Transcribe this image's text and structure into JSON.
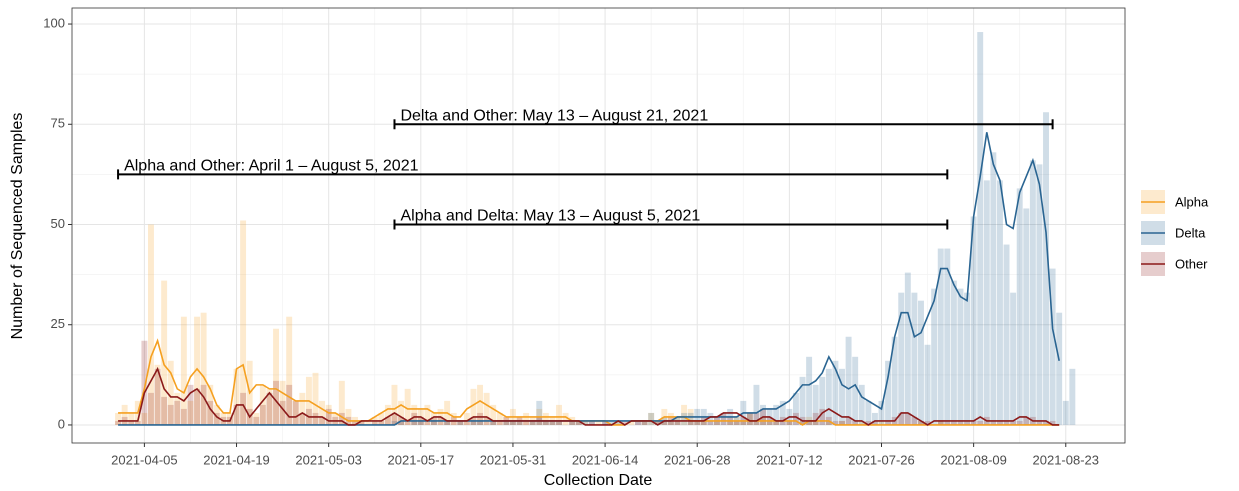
{
  "chart_data": {
    "type": "bar_line",
    "xlabel": "Collection Date",
    "ylabel": "Number of Sequenced Samples",
    "xlim": [
      "2021-03-25",
      "2021-09-01"
    ],
    "xticks": [
      "2021-04-05",
      "2021-04-19",
      "2021-05-03",
      "2021-05-17",
      "2021-05-31",
      "2021-06-14",
      "2021-06-28",
      "2021-07-12",
      "2021-07-26",
      "2021-08-09",
      "2021-08-23"
    ],
    "ylim": [
      -4.5,
      104
    ],
    "yticks": [
      0,
      25,
      50,
      75,
      100
    ],
    "grid": true,
    "legend": "right",
    "x": [
      "2021-04-01",
      "2021-04-02",
      "2021-04-03",
      "2021-04-04",
      "2021-04-05",
      "2021-04-06",
      "2021-04-07",
      "2021-04-08",
      "2021-04-09",
      "2021-04-10",
      "2021-04-11",
      "2021-04-12",
      "2021-04-13",
      "2021-04-14",
      "2021-04-15",
      "2021-04-16",
      "2021-04-17",
      "2021-04-18",
      "2021-04-19",
      "2021-04-20",
      "2021-04-21",
      "2021-04-22",
      "2021-04-23",
      "2021-04-24",
      "2021-04-25",
      "2021-04-26",
      "2021-04-27",
      "2021-04-28",
      "2021-04-29",
      "2021-04-30",
      "2021-05-01",
      "2021-05-02",
      "2021-05-03",
      "2021-05-04",
      "2021-05-05",
      "2021-05-06",
      "2021-05-07",
      "2021-05-08",
      "2021-05-09",
      "2021-05-10",
      "2021-05-11",
      "2021-05-12",
      "2021-05-13",
      "2021-05-14",
      "2021-05-15",
      "2021-05-16",
      "2021-05-17",
      "2021-05-18",
      "2021-05-19",
      "2021-05-20",
      "2021-05-21",
      "2021-05-22",
      "2021-05-23",
      "2021-05-24",
      "2021-05-25",
      "2021-05-26",
      "2021-05-27",
      "2021-05-28",
      "2021-05-29",
      "2021-05-30",
      "2021-05-31",
      "2021-06-01",
      "2021-06-02",
      "2021-06-03",
      "2021-06-04",
      "2021-06-05",
      "2021-06-06",
      "2021-06-07",
      "2021-06-08",
      "2021-06-09",
      "2021-06-10",
      "2021-06-11",
      "2021-06-12",
      "2021-06-13",
      "2021-06-14",
      "2021-06-15",
      "2021-06-16",
      "2021-06-17",
      "2021-06-18",
      "2021-06-19",
      "2021-06-20",
      "2021-06-21",
      "2021-06-22",
      "2021-06-23",
      "2021-06-24",
      "2021-06-25",
      "2021-06-26",
      "2021-06-27",
      "2021-06-28",
      "2021-06-29",
      "2021-06-30",
      "2021-07-01",
      "2021-07-02",
      "2021-07-03",
      "2021-07-04",
      "2021-07-05",
      "2021-07-06",
      "2021-07-07",
      "2021-07-08",
      "2021-07-09",
      "2021-07-10",
      "2021-07-11",
      "2021-07-12",
      "2021-07-13",
      "2021-07-14",
      "2021-07-15",
      "2021-07-16",
      "2021-07-17",
      "2021-07-18",
      "2021-07-19",
      "2021-07-20",
      "2021-07-21",
      "2021-07-22",
      "2021-07-23",
      "2021-07-24",
      "2021-07-25",
      "2021-07-26",
      "2021-07-27",
      "2021-07-28",
      "2021-07-29",
      "2021-07-30",
      "2021-07-31",
      "2021-08-01",
      "2021-08-02",
      "2021-08-03",
      "2021-08-04",
      "2021-08-05",
      "2021-08-06",
      "2021-08-07",
      "2021-08-08",
      "2021-08-09",
      "2021-08-10",
      "2021-08-11",
      "2021-08-12",
      "2021-08-13",
      "2021-08-14",
      "2021-08-15",
      "2021-08-16",
      "2021-08-17",
      "2021-08-18",
      "2021-08-19",
      "2021-08-20",
      "2021-08-21",
      "2021-08-22",
      "2021-08-23",
      "2021-08-24"
    ],
    "series": [
      {
        "name": "Alpha",
        "color": "#f5a020",
        "values": [
          3,
          5,
          3,
          6,
          3,
          50,
          15,
          36,
          16,
          8,
          27,
          6,
          27,
          28,
          10,
          5,
          3,
          3,
          14,
          51,
          16,
          3,
          10,
          9,
          24,
          11,
          27,
          6,
          8,
          12,
          13,
          6,
          5,
          3,
          11,
          4,
          2,
          1,
          1,
          2,
          3,
          5,
          10,
          6,
          9,
          5,
          4,
          5,
          3,
          4,
          6,
          3,
          1,
          3,
          9,
          10,
          8,
          5,
          3,
          2,
          4,
          2,
          3,
          2,
          4,
          3,
          2,
          5,
          3,
          2,
          1,
          1,
          0,
          1,
          0,
          0,
          1,
          0,
          1,
          0,
          1,
          3,
          1,
          4,
          3,
          2,
          5,
          4,
          1,
          1,
          0,
          1,
          0,
          1,
          2,
          1,
          3,
          1,
          2,
          1,
          1,
          0,
          1,
          0,
          1,
          2,
          1,
          0,
          1,
          0,
          1,
          0,
          0,
          1,
          0,
          0,
          1,
          0,
          0,
          0,
          0,
          0,
          1,
          0,
          0,
          1,
          0,
          0,
          0,
          0,
          0,
          0,
          0,
          0,
          0,
          0,
          0,
          0,
          0,
          0,
          0,
          0,
          0,
          0,
          0,
          0
        ],
        "smoothed": [
          3,
          3,
          3,
          3,
          9,
          17,
          21,
          15,
          13,
          9,
          8,
          12,
          14,
          12,
          9,
          5,
          3,
          3,
          14,
          15,
          8,
          10,
          10,
          9,
          9,
          8,
          7,
          6,
          6,
          6,
          5,
          4,
          3,
          3,
          2,
          1,
          1,
          1,
          1,
          2,
          3,
          4,
          4,
          5,
          4,
          4,
          4,
          4,
          3,
          3,
          3,
          2,
          2,
          4,
          5,
          6,
          5,
          4,
          3,
          2,
          2,
          2,
          2,
          2,
          2,
          2,
          2,
          2,
          2,
          1,
          1,
          1,
          1,
          1,
          1,
          0,
          0,
          0,
          1,
          1,
          1,
          1,
          1,
          2,
          2,
          2,
          2,
          1,
          1,
          1,
          1,
          1,
          1,
          1,
          1,
          1,
          1,
          1,
          1,
          1,
          1,
          1,
          1,
          1,
          0,
          1,
          1,
          1,
          1,
          0,
          0,
          0,
          0,
          0,
          0,
          0,
          0,
          0,
          0,
          0,
          0,
          0,
          0,
          0,
          0,
          0,
          0,
          0,
          0,
          0,
          0,
          0,
          0,
          0,
          0,
          0,
          0,
          0,
          0,
          0,
          0,
          0,
          0,
          0,
          null,
          null
        ]
      },
      {
        "name": "Delta",
        "color": "#2a6592",
        "values": [
          0,
          0,
          0,
          0,
          0,
          0,
          0,
          0,
          0,
          0,
          0,
          0,
          0,
          0,
          0,
          0,
          0,
          0,
          0,
          0,
          0,
          0,
          0,
          0,
          0,
          0,
          0,
          0,
          0,
          0,
          0,
          0,
          0,
          0,
          0,
          0,
          0,
          0,
          0,
          0,
          0,
          0,
          1,
          1,
          0,
          1,
          1,
          0,
          1,
          0,
          1,
          0,
          1,
          0,
          1,
          1,
          0,
          1,
          0,
          1,
          1,
          1,
          0,
          1,
          6,
          1,
          1,
          1,
          0,
          1,
          1,
          1,
          1,
          0,
          1,
          1,
          1,
          0,
          0,
          1,
          1,
          3,
          1,
          2,
          1,
          2,
          3,
          3,
          4,
          4,
          3,
          2,
          3,
          4,
          2,
          6,
          3,
          10,
          5,
          4,
          5,
          6,
          4,
          8,
          12,
          17,
          10,
          12,
          14,
          16,
          14,
          22,
          17,
          10,
          6,
          3,
          6,
          16,
          22,
          33,
          38,
          33,
          31,
          20,
          34,
          44,
          44,
          36,
          34,
          33,
          52,
          98,
          61,
          68,
          61,
          45,
          33,
          59,
          54,
          66,
          65,
          78,
          39,
          28,
          6,
          14
        ],
        "smoothed": [
          0,
          0,
          0,
          0,
          0,
          0,
          0,
          0,
          0,
          0,
          0,
          0,
          0,
          0,
          0,
          0,
          0,
          0,
          0,
          0,
          0,
          0,
          0,
          0,
          0,
          0,
          0,
          0,
          0,
          0,
          0,
          0,
          0,
          0,
          0,
          0,
          0,
          0,
          0,
          0,
          0,
          0,
          0,
          1,
          1,
          1,
          1,
          1,
          1,
          1,
          1,
          1,
          1,
          1,
          1,
          1,
          1,
          1,
          1,
          1,
          1,
          1,
          1,
          1,
          1,
          1,
          1,
          1,
          1,
          1,
          1,
          1,
          1,
          1,
          1,
          1,
          1,
          1,
          1,
          1,
          1,
          1,
          1,
          1,
          1,
          2,
          2,
          2,
          2,
          2,
          2,
          2,
          2,
          2,
          2,
          3,
          3,
          3,
          4,
          4,
          4,
          5,
          6,
          8,
          10,
          10,
          11,
          13,
          17,
          14,
          10,
          9,
          10,
          7,
          6,
          5,
          4,
          12,
          22,
          28,
          28,
          22,
          23,
          27,
          31,
          39,
          39,
          35,
          32,
          31,
          52,
          62,
          73,
          65,
          61,
          50,
          49,
          58,
          62,
          66,
          60,
          48,
          24,
          16,
          null,
          null
        ]
      },
      {
        "name": "Other",
        "color": "#8b1a1a",
        "values": [
          1,
          2,
          1,
          1,
          21,
          8,
          14,
          7,
          5,
          6,
          4,
          10,
          9,
          10,
          6,
          3,
          2,
          2,
          5,
          8,
          4,
          2,
          5,
          8,
          11,
          6,
          10,
          6,
          3,
          4,
          3,
          2,
          4,
          2,
          3,
          2,
          1,
          1,
          0,
          1,
          1,
          2,
          3,
          2,
          1,
          3,
          2,
          1,
          2,
          2,
          1,
          2,
          1,
          1,
          2,
          3,
          2,
          1,
          1,
          2,
          1,
          2,
          1,
          1,
          2,
          1,
          1,
          1,
          0,
          1,
          1,
          0,
          1,
          0,
          1,
          0,
          0,
          1,
          0,
          1,
          1,
          0,
          1,
          1,
          2,
          1,
          0,
          1,
          1,
          2,
          1,
          2,
          3,
          2,
          1,
          2,
          3,
          3,
          4,
          2,
          1,
          2,
          1,
          3,
          2,
          1,
          3,
          4,
          2,
          1,
          1,
          2,
          1,
          0,
          1,
          1,
          0,
          1,
          2,
          3,
          3,
          2,
          1,
          1,
          0,
          1,
          1,
          1,
          1,
          1,
          1,
          1,
          2,
          1,
          1,
          1,
          1,
          1,
          2,
          2,
          1,
          1,
          1,
          0,
          0,
          0
        ],
        "smoothed": [
          1,
          1,
          1,
          1,
          8,
          11,
          14,
          9,
          7,
          7,
          6,
          8,
          9,
          7,
          4,
          2,
          1,
          1,
          5,
          5,
          2,
          4,
          6,
          8,
          6,
          4,
          2,
          2,
          3,
          2,
          2,
          2,
          1,
          1,
          1,
          0,
          0,
          1,
          1,
          1,
          1,
          2,
          3,
          2,
          1,
          2,
          2,
          1,
          2,
          2,
          1,
          1,
          1,
          1,
          2,
          2,
          2,
          1,
          1,
          1,
          1,
          1,
          1,
          1,
          1,
          1,
          1,
          1,
          1,
          1,
          1,
          0,
          0,
          0,
          0,
          0,
          1,
          0,
          1,
          1,
          1,
          1,
          0,
          1,
          1,
          1,
          1,
          1,
          1,
          1,
          2,
          2,
          3,
          3,
          3,
          2,
          1,
          1,
          2,
          2,
          1,
          1,
          2,
          2,
          1,
          1,
          1,
          3,
          4,
          3,
          2,
          2,
          1,
          1,
          0,
          1,
          1,
          1,
          1,
          3,
          3,
          2,
          1,
          0,
          1,
          1,
          1,
          1,
          1,
          1,
          1,
          2,
          1,
          1,
          1,
          1,
          1,
          2,
          2,
          1,
          1,
          1,
          0,
          0,
          null,
          null
        ]
      }
    ],
    "annotations": [
      {
        "text": "Delta and Other: May 13 – August 21, 2021",
        "start": "2021-05-13",
        "end": "2021-08-21",
        "y": 75
      },
      {
        "text": "Alpha and Other: April 1 – August 5, 2021",
        "start": "2021-04-01",
        "end": "2021-08-05",
        "y": 62.5
      },
      {
        "text": "Alpha and Delta: May 13 – August 5, 2021",
        "start": "2021-05-13",
        "end": "2021-08-05",
        "y": 50
      }
    ]
  }
}
